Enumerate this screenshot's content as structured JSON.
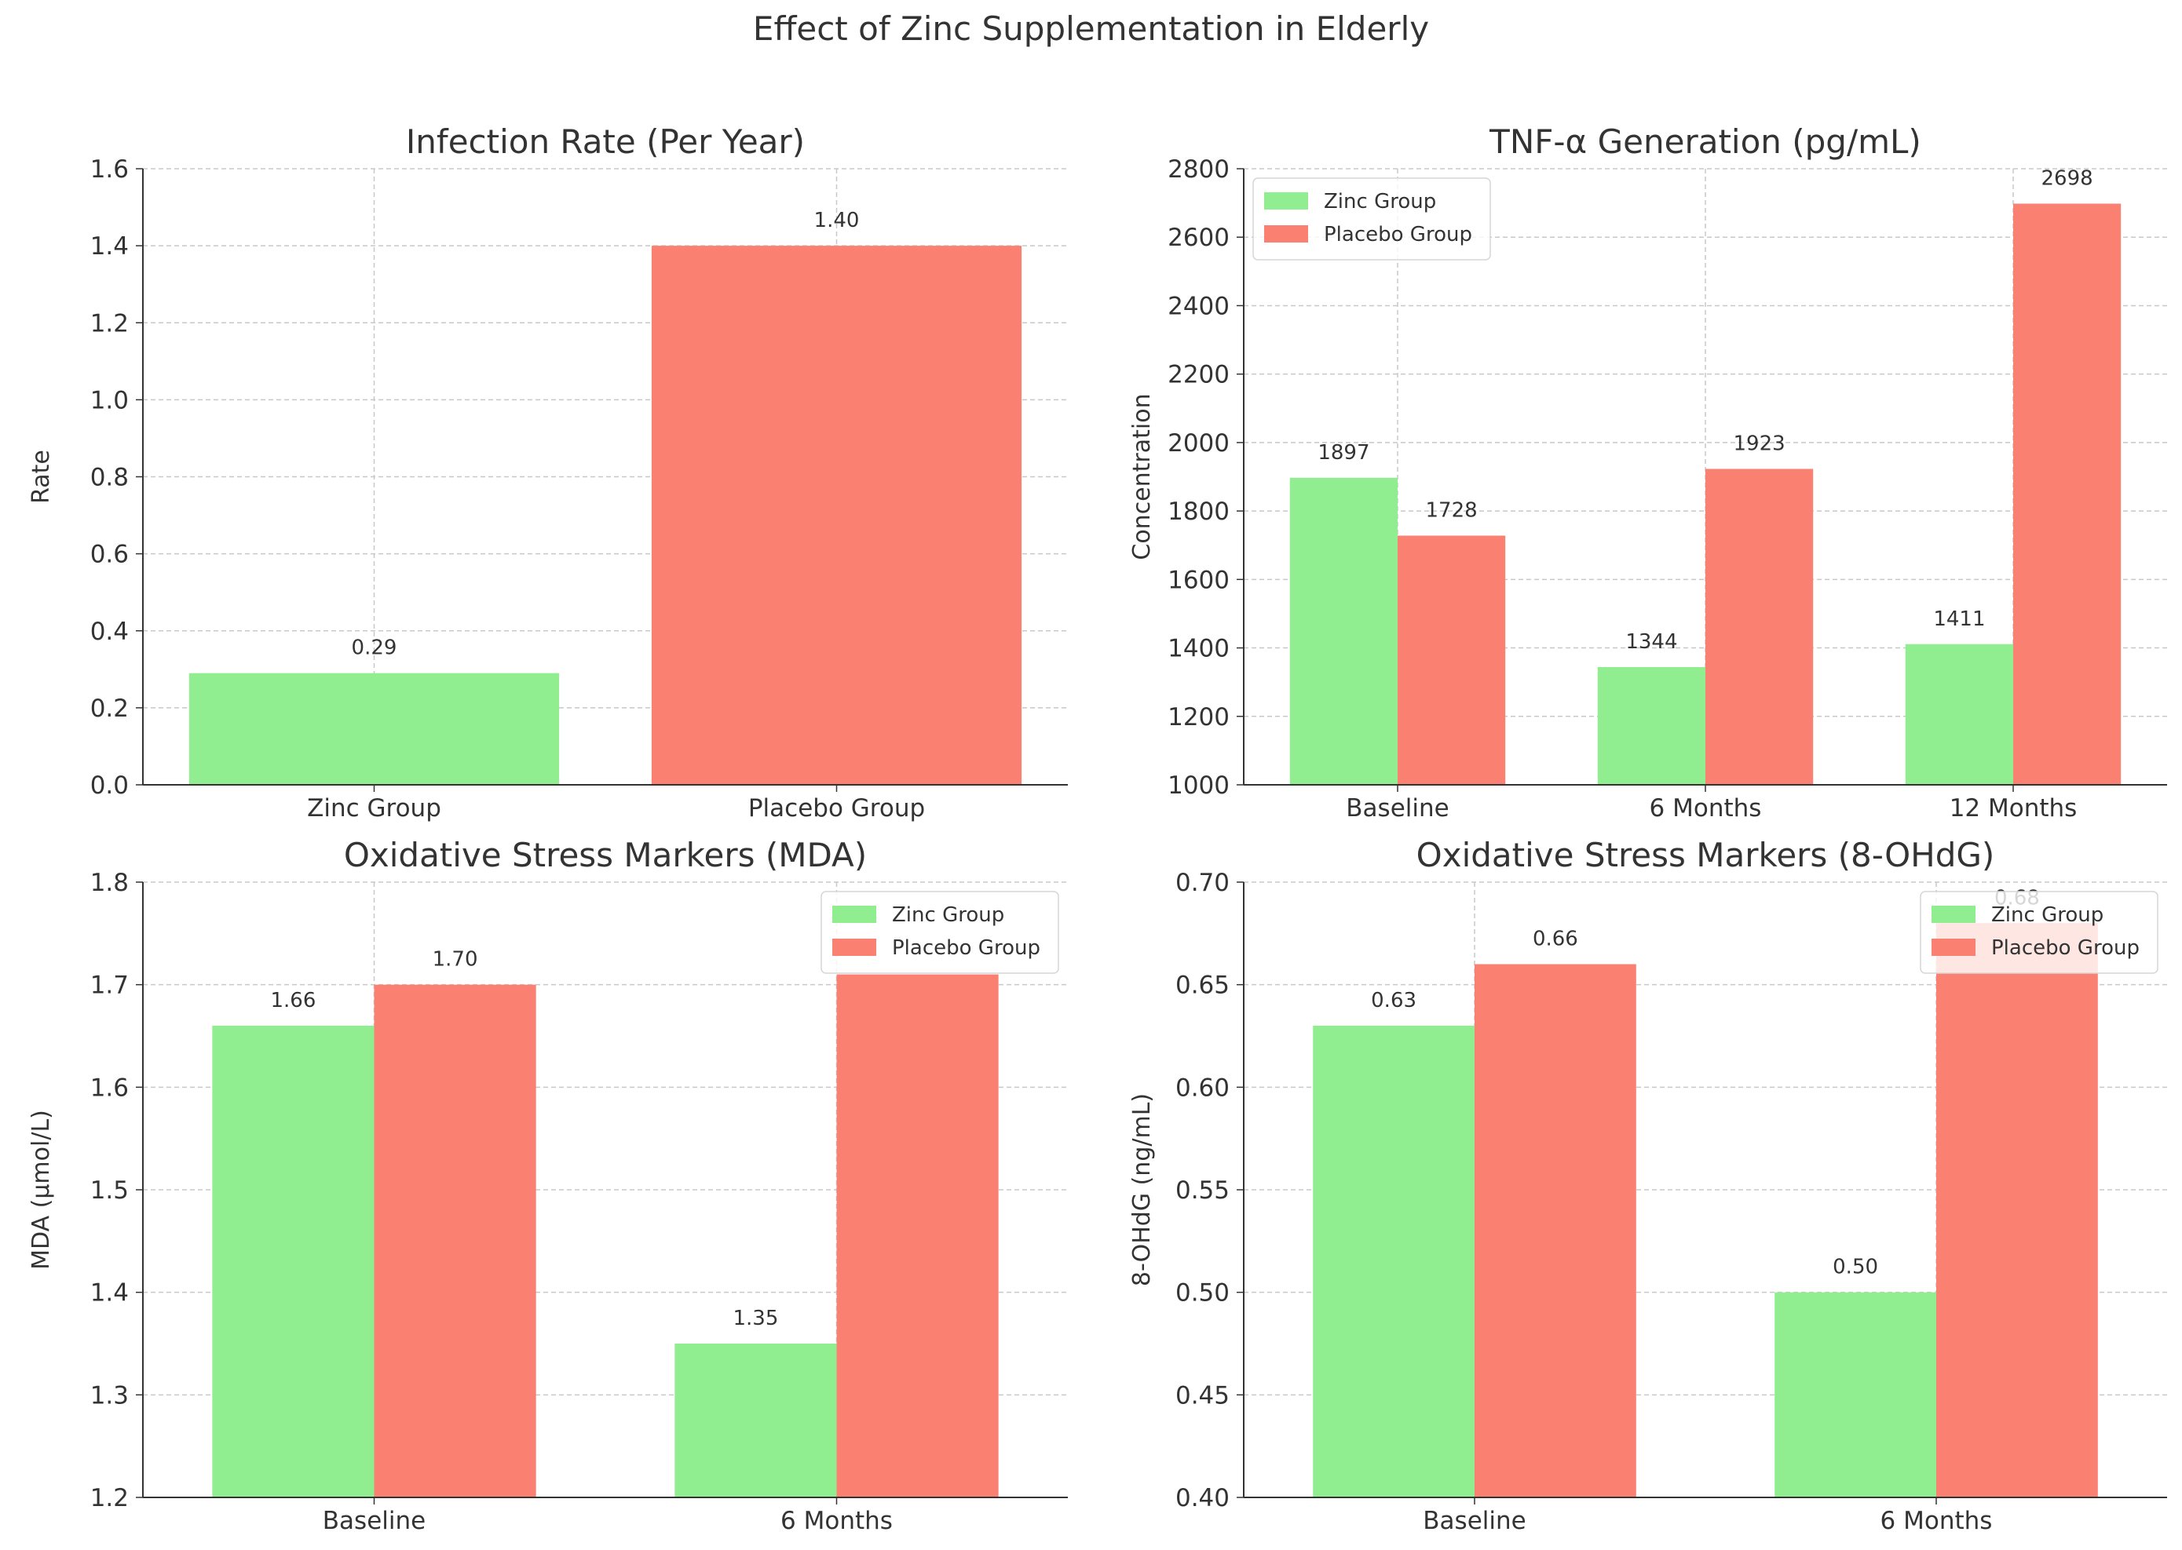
{
  "figure_title": "Effect of Zinc Supplementation in Elderly",
  "colors": {
    "zinc": "#90ee90",
    "placebo": "#fa8072",
    "grid": "#c8c8c8",
    "text": "#333333"
  },
  "chart_data": [
    {
      "type": "bar",
      "title": "Infection Rate (Per Year)",
      "xlabel": "",
      "ylabel": "Rate",
      "ylim": [
        0,
        1.6
      ],
      "yticks": [
        "0.0",
        "0.2",
        "0.4",
        "0.6",
        "0.8",
        "1.0",
        "1.2",
        "1.4",
        "1.6"
      ],
      "categories": [
        "Zinc Group",
        "Placebo Group"
      ],
      "values": [
        0.29,
        1.4
      ],
      "value_labels": [
        "0.29",
        "1.40"
      ],
      "bar_colors": [
        "#90ee90",
        "#fa8072"
      ],
      "grid": true,
      "legend": null
    },
    {
      "type": "bar",
      "title": "TNF-α Generation (pg/mL)",
      "xlabel": "",
      "ylabel": "Concentration",
      "ylim": [
        1000,
        2800
      ],
      "yticks": [
        "1000",
        "1200",
        "1400",
        "1600",
        "1800",
        "2000",
        "2200",
        "2400",
        "2600",
        "2800"
      ],
      "categories": [
        "Baseline",
        "6 Months",
        "12 Months"
      ],
      "series": [
        {
          "name": "Zinc Group",
          "values": [
            1897,
            1344,
            1411
          ],
          "labels": [
            "1897",
            "1344",
            "1411"
          ],
          "color": "#90ee90"
        },
        {
          "name": "Placebo Group",
          "values": [
            1728,
            1923,
            2698
          ],
          "labels": [
            "1728",
            "1923",
            "2698"
          ],
          "color": "#fa8072"
        }
      ],
      "grid": true,
      "legend": "upper-left"
    },
    {
      "type": "bar",
      "title": "Oxidative Stress Markers (MDA)",
      "xlabel": "",
      "ylabel": "MDA (µmol/L)",
      "ylim": [
        1.2,
        1.8
      ],
      "yticks": [
        "1.2",
        "1.3",
        "1.4",
        "1.5",
        "1.6",
        "1.7",
        "1.8"
      ],
      "categories": [
        "Baseline",
        "6 Months"
      ],
      "series": [
        {
          "name": "Zinc Group",
          "values": [
            1.66,
            1.35
          ],
          "labels": [
            "1.66",
            "1.35"
          ],
          "color": "#90ee90"
        },
        {
          "name": "Placebo Group",
          "values": [
            1.7,
            1.71
          ],
          "labels": [
            "1.70",
            ""
          ],
          "color": "#fa8072"
        }
      ],
      "grid": true,
      "legend": "upper-right"
    },
    {
      "type": "bar",
      "title": "Oxidative Stress Markers (8-OHdG)",
      "xlabel": "",
      "ylabel": "8-OHdG (ng/mL)",
      "ylim": [
        0.4,
        0.7
      ],
      "yticks": [
        "0.40",
        "0.45",
        "0.50",
        "0.55",
        "0.60",
        "0.65",
        "0.70"
      ],
      "categories": [
        "Baseline",
        "6 Months"
      ],
      "series": [
        {
          "name": "Zinc Group",
          "values": [
            0.63,
            0.5
          ],
          "labels": [
            "0.63",
            "0.50"
          ],
          "color": "#90ee90"
        },
        {
          "name": "Placebo Group",
          "values": [
            0.66,
            0.68
          ],
          "labels": [
            "0.66",
            "0.68"
          ],
          "color": "#fa8072"
        }
      ],
      "grid": true,
      "legend": "upper-right"
    }
  ]
}
